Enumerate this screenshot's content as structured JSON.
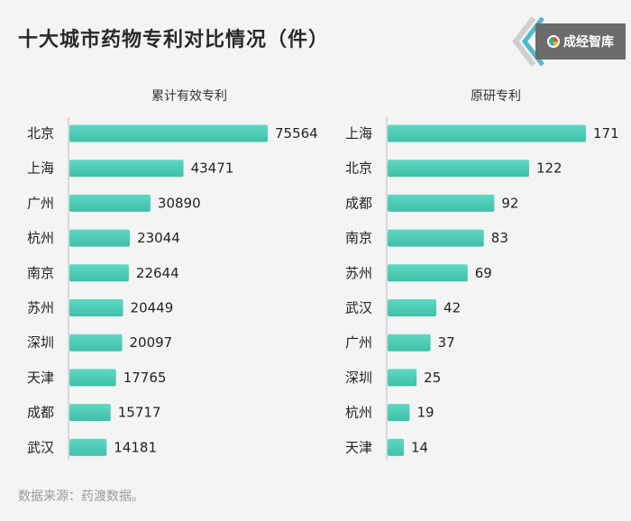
{
  "title": "十大城市药物专利对比情况（件）",
  "brand": {
    "name": "成经智库",
    "icon": "color-ring-icon"
  },
  "source": "数据来源：药渡数据。",
  "colors": {
    "bar": "#4ecdb8",
    "text": "#222222",
    "background": "#f4f4f4"
  },
  "chart_data": [
    {
      "type": "bar",
      "orientation": "horizontal",
      "title": "累计有效专利",
      "categories": [
        "北京",
        "上海",
        "广州",
        "杭州",
        "南京",
        "苏州",
        "深圳",
        "天津",
        "成都",
        "武汉"
      ],
      "values": [
        75564,
        43471,
        30890,
        23044,
        22644,
        20449,
        20097,
        17765,
        15717,
        14181
      ],
      "labels": [
        "75564",
        "43471",
        "30890",
        "23044",
        "22644",
        "20449",
        "20097",
        "17765",
        "15717",
        "14181"
      ]
    },
    {
      "type": "bar",
      "orientation": "horizontal",
      "title": "原研专利",
      "categories": [
        "上海",
        "北京",
        "成都",
        "南京",
        "苏州",
        "武汉",
        "广州",
        "深圳",
        "杭州",
        "天津"
      ],
      "values": [
        171,
        122,
        92,
        83,
        69,
        42,
        37,
        25,
        19,
        14
      ],
      "labels": [
        "171",
        "122",
        "92",
        "83",
        "69",
        "42",
        "37",
        "25",
        "19",
        "14"
      ]
    }
  ]
}
